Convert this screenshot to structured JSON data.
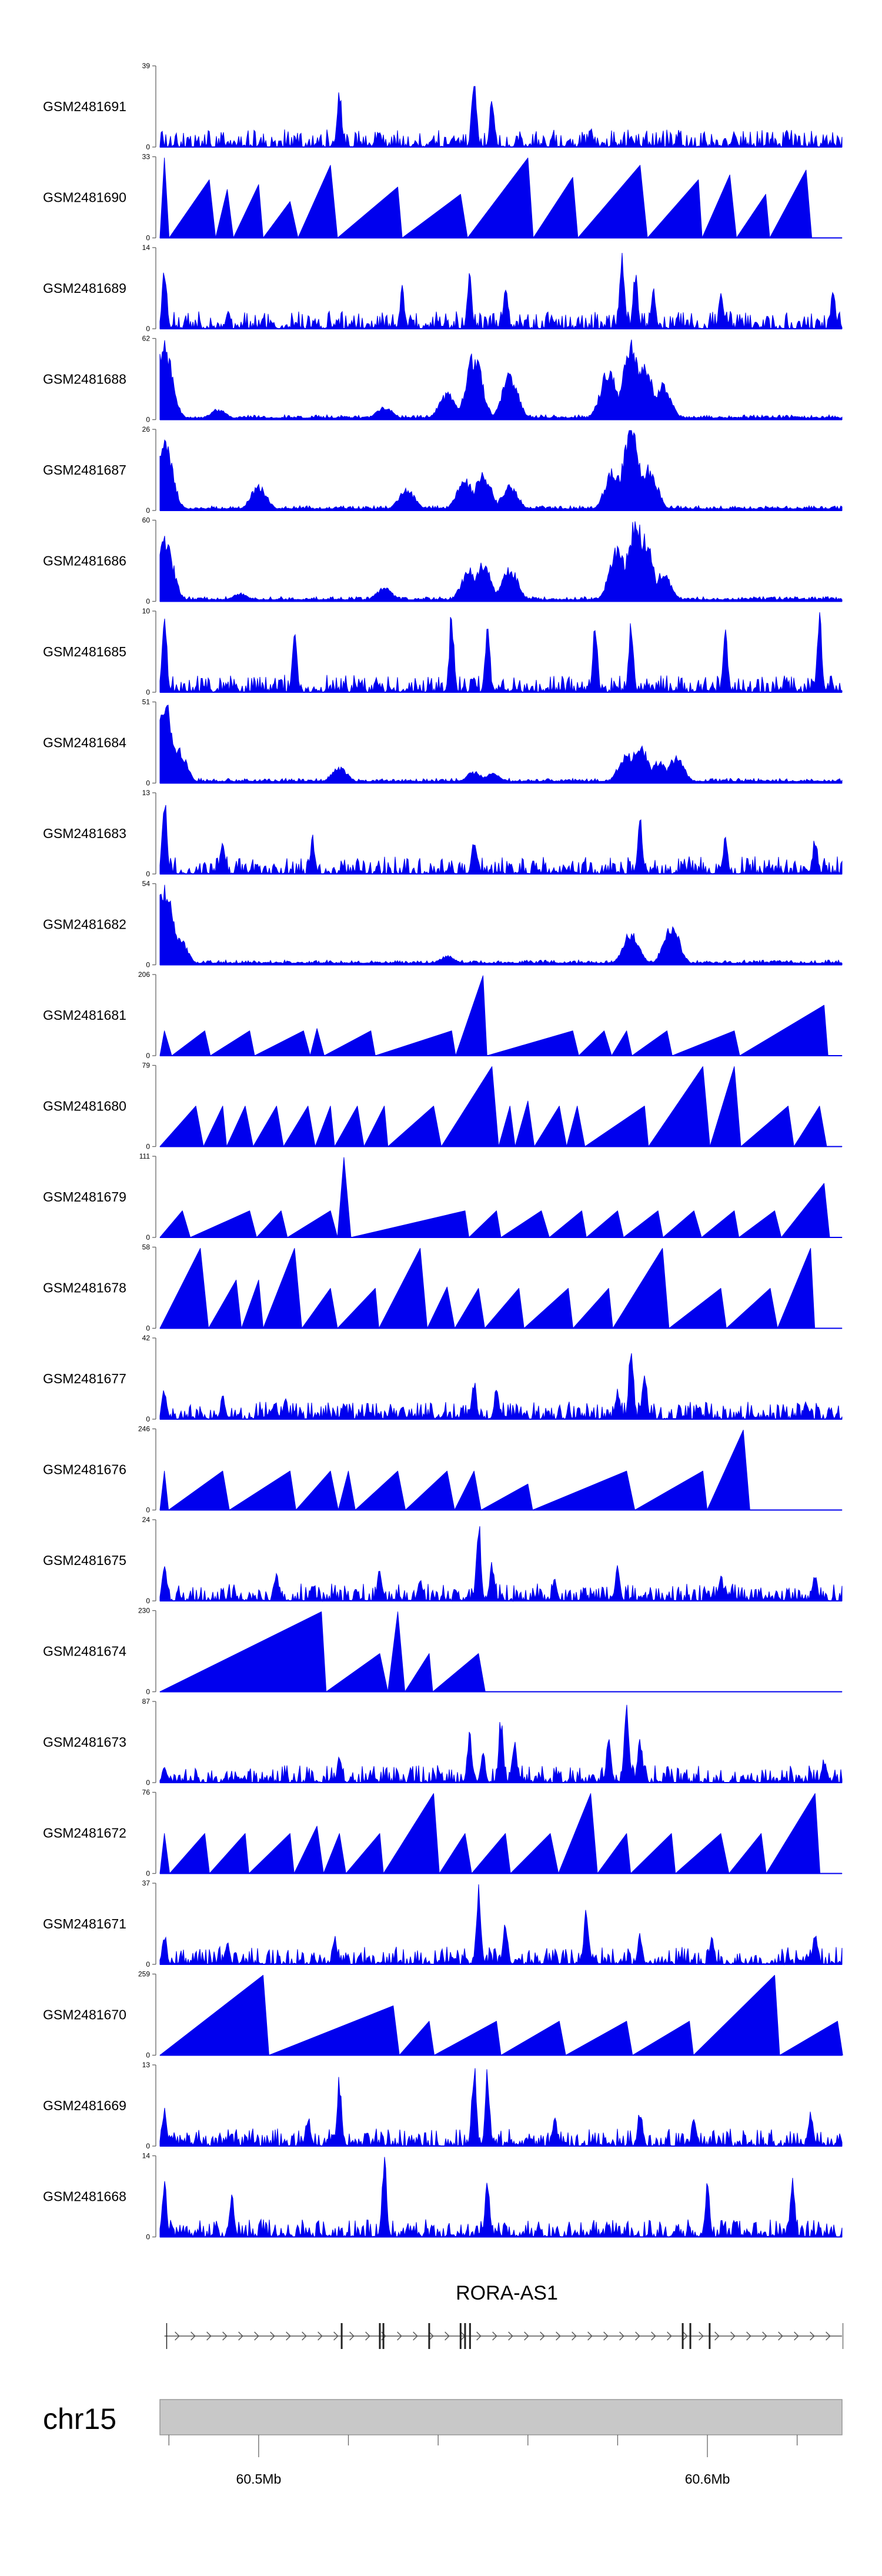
{
  "chart_data": {
    "type": "area",
    "title": "",
    "xlabel": "",
    "ylabel": "",
    "x_range_mb": [
      60.478,
      60.63
    ],
    "colors": {
      "signal": "#0000ee",
      "gene": "#555555",
      "ideogram": "#c8c8c8"
    },
    "tracks": [
      {
        "name": "GSM2481691",
        "ymax": "39",
        "style": "spiky",
        "peaks": [
          [
            60.518,
            27
          ],
          [
            60.548,
            39
          ],
          [
            60.552,
            23
          ],
          [
            60.574,
            9
          ],
          [
            60.583,
            6
          ],
          [
            60.606,
            7
          ]
        ]
      },
      {
        "name": "GSM2481690",
        "ymax": "33",
        "style": "triangles",
        "peaks": [
          [
            60.479,
            33
          ],
          [
            60.489,
            24
          ],
          [
            60.493,
            20
          ],
          [
            60.5,
            22
          ],
          [
            60.507,
            15
          ],
          [
            60.516,
            30
          ],
          [
            60.531,
            21
          ],
          [
            60.545,
            18
          ],
          [
            60.56,
            33
          ],
          [
            60.57,
            25
          ],
          [
            60.585,
            30
          ],
          [
            60.598,
            24
          ],
          [
            60.605,
            26
          ],
          [
            60.613,
            18
          ],
          [
            60.622,
            28
          ]
        ]
      },
      {
        "name": "GSM2481689",
        "ymax": "14",
        "style": "spiky",
        "peaks": [
          [
            60.479,
            11
          ],
          [
            60.532,
            7
          ],
          [
            60.547,
            9
          ],
          [
            60.555,
            7
          ],
          [
            60.581,
            14
          ],
          [
            60.584,
            10
          ],
          [
            60.588,
            7
          ],
          [
            60.603,
            6
          ],
          [
            60.628,
            7
          ]
        ]
      },
      {
        "name": "GSM2481688",
        "ymax": "62",
        "style": "broad",
        "peaks": [
          [
            60.479,
            56
          ],
          [
            60.491,
            8
          ],
          [
            60.528,
            10
          ],
          [
            60.542,
            20
          ],
          [
            60.548,
            50
          ],
          [
            60.556,
            35
          ],
          [
            60.578,
            40
          ],
          [
            60.583,
            62
          ],
          [
            60.586,
            44
          ],
          [
            60.59,
            28
          ]
        ]
      },
      {
        "name": "GSM2481687",
        "ymax": "26",
        "style": "broad",
        "peaks": [
          [
            60.479,
            22
          ],
          [
            60.5,
            8
          ],
          [
            60.533,
            7
          ],
          [
            60.546,
            10
          ],
          [
            60.55,
            12
          ],
          [
            60.556,
            8
          ],
          [
            60.579,
            13
          ],
          [
            60.583,
            26
          ],
          [
            60.587,
            14
          ]
        ]
      },
      {
        "name": "GSM2481686",
        "ymax": "60",
        "style": "broad",
        "peaks": [
          [
            60.479,
            50
          ],
          [
            60.496,
            6
          ],
          [
            60.528,
            10
          ],
          [
            60.547,
            24
          ],
          [
            60.55,
            28
          ],
          [
            60.556,
            25
          ],
          [
            60.58,
            40
          ],
          [
            60.584,
            60
          ],
          [
            60.586,
            48
          ],
          [
            60.59,
            22
          ]
        ]
      },
      {
        "name": "GSM2481685",
        "ymax": "10",
        "style": "spiky",
        "peaks": [
          [
            60.479,
            10
          ],
          [
            60.508,
            8
          ],
          [
            60.543,
            10
          ],
          [
            60.551,
            9
          ],
          [
            60.575,
            9
          ],
          [
            60.583,
            9
          ],
          [
            60.604,
            8
          ],
          [
            60.625,
            10
          ]
        ]
      },
      {
        "name": "GSM2481684",
        "ymax": "51",
        "style": "broad",
        "peaks": [
          [
            60.479,
            51
          ],
          [
            60.482,
            22
          ],
          [
            60.518,
            10
          ],
          [
            60.548,
            7
          ],
          [
            60.552,
            6
          ],
          [
            60.582,
            19
          ],
          [
            60.585,
            24
          ],
          [
            60.589,
            14
          ],
          [
            60.593,
            16
          ]
        ]
      },
      {
        "name": "GSM2481683",
        "ymax": "13",
        "style": "spiky",
        "peaks": [
          [
            60.479,
            13
          ],
          [
            60.492,
            6
          ],
          [
            60.512,
            6
          ],
          [
            60.548,
            6
          ],
          [
            60.585,
            10
          ],
          [
            60.604,
            6
          ],
          [
            60.624,
            6
          ]
        ]
      },
      {
        "name": "GSM2481682",
        "ymax": "54",
        "style": "broad",
        "peaks": [
          [
            60.479,
            54
          ],
          [
            60.482,
            20
          ],
          [
            60.542,
            6
          ],
          [
            60.583,
            22
          ],
          [
            60.592,
            26
          ]
        ]
      },
      {
        "name": "GSM2481681",
        "ymax": "206",
        "style": "triangles",
        "peaks": [
          [
            60.479,
            64
          ],
          [
            60.488,
            64
          ],
          [
            60.498,
            64
          ],
          [
            60.51,
            64
          ],
          [
            60.513,
            70
          ],
          [
            60.525,
            64
          ],
          [
            60.543,
            64
          ],
          [
            60.55,
            206
          ],
          [
            60.57,
            64
          ],
          [
            60.577,
            64
          ],
          [
            60.582,
            64
          ],
          [
            60.591,
            64
          ],
          [
            60.606,
            64
          ],
          [
            60.626,
            130
          ]
        ]
      },
      {
        "name": "GSM2481680",
        "ymax": "79",
        "style": "triangles",
        "peaks": [
          [
            60.486,
            40
          ],
          [
            60.492,
            40
          ],
          [
            60.497,
            40
          ],
          [
            60.504,
            40
          ],
          [
            60.511,
            40
          ],
          [
            60.516,
            40
          ],
          [
            60.522,
            40
          ],
          [
            60.528,
            40
          ],
          [
            60.539,
            40
          ],
          [
            60.552,
            79
          ],
          [
            60.556,
            40
          ],
          [
            60.56,
            45
          ],
          [
            60.567,
            40
          ],
          [
            60.571,
            40
          ],
          [
            60.586,
            40
          ],
          [
            60.599,
            79
          ],
          [
            60.606,
            79
          ],
          [
            60.618,
            40
          ],
          [
            60.625,
            40
          ]
        ]
      },
      {
        "name": "GSM2481679",
        "ymax": "111",
        "style": "triangles",
        "peaks": [
          [
            60.483,
            37
          ],
          [
            60.498,
            37
          ],
          [
            60.505,
            37
          ],
          [
            60.516,
            37
          ],
          [
            60.519,
            111
          ],
          [
            60.546,
            37
          ],
          [
            60.553,
            37
          ],
          [
            60.563,
            37
          ],
          [
            60.572,
            37
          ],
          [
            60.58,
            37
          ],
          [
            60.589,
            37
          ],
          [
            60.597,
            37
          ],
          [
            60.606,
            37
          ],
          [
            60.615,
            37
          ],
          [
            60.626,
            75
          ]
        ]
      },
      {
        "name": "GSM2481678",
        "ymax": "58",
        "style": "triangles",
        "peaks": [
          [
            60.487,
            58
          ],
          [
            60.495,
            35
          ],
          [
            60.5,
            35
          ],
          [
            60.508,
            58
          ],
          [
            60.516,
            29
          ],
          [
            60.526,
            29
          ],
          [
            60.536,
            58
          ],
          [
            60.542,
            30
          ],
          [
            60.549,
            29
          ],
          [
            60.558,
            29
          ],
          [
            60.569,
            29
          ],
          [
            60.578,
            29
          ],
          [
            60.59,
            58
          ],
          [
            60.603,
            29
          ],
          [
            60.614,
            29
          ],
          [
            60.623,
            58
          ]
        ]
      },
      {
        "name": "GSM2481677",
        "ymax": "42",
        "style": "spiky",
        "peaks": [
          [
            60.479,
            16
          ],
          [
            60.492,
            12
          ],
          [
            60.506,
            10
          ],
          [
            60.519,
            8
          ],
          [
            60.532,
            7
          ],
          [
            60.548,
            20
          ],
          [
            60.553,
            16
          ],
          [
            60.58,
            16
          ],
          [
            60.583,
            42
          ],
          [
            60.586,
            26
          ],
          [
            60.598,
            7
          ],
          [
            60.622,
            10
          ]
        ]
      },
      {
        "name": "GSM2481676",
        "ymax": "246",
        "style": "triangles",
        "peaks": [
          [
            60.479,
            120
          ],
          [
            60.492,
            120
          ],
          [
            60.507,
            120
          ],
          [
            60.516,
            120
          ],
          [
            60.52,
            120
          ],
          [
            60.531,
            120
          ],
          [
            60.542,
            120
          ],
          [
            60.548,
            120
          ],
          [
            60.56,
            80
          ],
          [
            60.582,
            120
          ],
          [
            60.599,
            120
          ],
          [
            60.608,
            246
          ]
        ]
      },
      {
        "name": "GSM2481675",
        "ymax": "24",
        "style": "spiky",
        "peaks": [
          [
            60.479,
            10
          ],
          [
            60.504,
            8
          ],
          [
            60.527,
            10
          ],
          [
            60.536,
            7
          ],
          [
            60.549,
            24
          ],
          [
            60.552,
            12
          ],
          [
            60.566,
            7
          ],
          [
            60.58,
            10
          ],
          [
            60.603,
            8
          ],
          [
            60.624,
            8
          ]
        ]
      },
      {
        "name": "GSM2481674",
        "ymax": "230",
        "style": "triangles",
        "peaks": [
          [
            60.514,
            230
          ],
          [
            60.527,
            110
          ],
          [
            60.531,
            230
          ],
          [
            60.538,
            110
          ],
          [
            60.549,
            110
          ]
        ]
      },
      {
        "name": "GSM2481673",
        "ymax": "87",
        "style": "spiky",
        "peaks": [
          [
            60.479,
            18
          ],
          [
            60.518,
            28
          ],
          [
            60.547,
            56
          ],
          [
            60.55,
            34
          ],
          [
            60.554,
            70
          ],
          [
            60.557,
            48
          ],
          [
            60.578,
            48
          ],
          [
            60.582,
            87
          ],
          [
            60.585,
            50
          ],
          [
            60.626,
            26
          ]
        ]
      },
      {
        "name": "GSM2481672",
        "ymax": "76",
        "style": "triangles",
        "peaks": [
          [
            60.479,
            38
          ],
          [
            60.488,
            38
          ],
          [
            60.497,
            38
          ],
          [
            60.507,
            38
          ],
          [
            60.513,
            45
          ],
          [
            60.518,
            38
          ],
          [
            60.527,
            38
          ],
          [
            60.539,
            76
          ],
          [
            60.546,
            38
          ],
          [
            60.555,
            38
          ],
          [
            60.565,
            38
          ],
          [
            60.574,
            76
          ],
          [
            60.582,
            38
          ],
          [
            60.592,
            38
          ],
          [
            60.603,
            38
          ],
          [
            60.612,
            38
          ],
          [
            60.624,
            76
          ]
        ]
      },
      {
        "name": "GSM2481671",
        "ymax": "37",
        "style": "spiky",
        "peaks": [
          [
            60.479,
            14
          ],
          [
            60.493,
            10
          ],
          [
            60.517,
            12
          ],
          [
            60.549,
            37
          ],
          [
            60.555,
            20
          ],
          [
            60.573,
            26
          ],
          [
            60.585,
            14
          ],
          [
            60.601,
            12
          ],
          [
            60.624,
            14
          ]
        ]
      },
      {
        "name": "GSM2481670",
        "ymax": "259",
        "style": "triangles",
        "peaks": [
          [
            60.501,
            259
          ],
          [
            60.53,
            160
          ],
          [
            60.538,
            110
          ],
          [
            60.553,
            110
          ],
          [
            60.567,
            110
          ],
          [
            60.582,
            110
          ],
          [
            60.596,
            110
          ],
          [
            60.615,
            259
          ],
          [
            60.629,
            110
          ]
        ]
      },
      {
        "name": "GSM2481669",
        "ymax": "13",
        "style": "spiky",
        "peaks": [
          [
            60.479,
            6
          ],
          [
            60.511,
            5
          ],
          [
            60.518,
            11
          ],
          [
            60.548,
            13
          ],
          [
            60.551,
            12
          ],
          [
            60.566,
            5
          ],
          [
            60.585,
            6
          ],
          [
            60.597,
            5
          ],
          [
            60.623,
            6
          ]
        ]
      },
      {
        "name": "GSM2481668",
        "ymax": "14",
        "style": "spiky",
        "peaks": [
          [
            60.479,
            10
          ],
          [
            60.494,
            8
          ],
          [
            60.528,
            14
          ],
          [
            60.551,
            10
          ],
          [
            60.6,
            9
          ],
          [
            60.619,
            10
          ]
        ]
      }
    ],
    "gene": {
      "name": "RORA-AS1",
      "start": 60.479,
      "end": 60.63,
      "exons": [
        60.4795,
        60.5185,
        60.527,
        60.5278,
        60.538,
        60.545,
        60.546,
        60.5471,
        60.5945,
        60.5962,
        60.6005,
        60.6302
      ]
    },
    "ideogram": {
      "chromosome": "chr15",
      "ticks": [
        {
          "pos": 60.5,
          "label": "60.5Mb"
        },
        {
          "pos": 60.6,
          "label": "60.6Mb"
        }
      ],
      "minor_ticks": [
        60.48,
        60.52,
        60.54,
        60.56,
        60.58,
        60.62
      ]
    }
  }
}
